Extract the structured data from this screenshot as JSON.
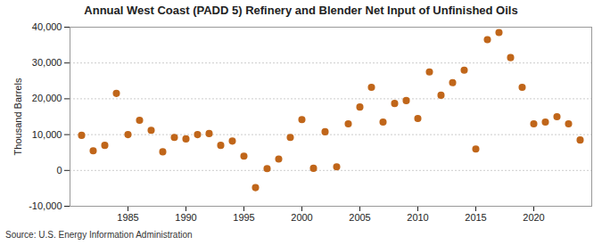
{
  "chart_data": {
    "type": "scatter",
    "title": "Annual West Coast (PADD 5) Refinery and Blender Net Input of Unfinished Oils",
    "y_label": "Thousand Barrels",
    "source": "Source: U.S. Energy Information Administration",
    "x": [
      1981,
      1982,
      1983,
      1984,
      1985,
      1986,
      1987,
      1988,
      1989,
      1990,
      1991,
      1992,
      1993,
      1994,
      1995,
      1996,
      1997,
      1998,
      1999,
      2000,
      2001,
      2002,
      2003,
      2004,
      2005,
      2006,
      2007,
      2008,
      2009,
      2010,
      2011,
      2012,
      2013,
      2014,
      2015,
      2016,
      2017,
      2018,
      2019,
      2020,
      2021,
      2022,
      2023,
      2024
    ],
    "values": [
      9800,
      5500,
      7000,
      21500,
      10000,
      14000,
      11200,
      5200,
      9200,
      8800,
      10000,
      10300,
      7000,
      8200,
      4000,
      -4800,
      500,
      3200,
      9200,
      14200,
      600,
      10800,
      1000,
      13000,
      17700,
      23200,
      13500,
      18700,
      19500,
      14500,
      27500,
      21000,
      24500,
      28000,
      6000,
      36500,
      38500,
      31500,
      23200,
      13000,
      13500,
      15000,
      13000,
      8500
    ],
    "color": "#c0661a",
    "marker": "circle",
    "xlim": [
      1980,
      2025
    ],
    "xticks": [
      1985,
      1990,
      1995,
      2000,
      2005,
      2010,
      2015,
      2020
    ],
    "ylim": [
      -10000,
      40000
    ],
    "yticks": [
      {
        "value": -10000,
        "label": "-10,000"
      },
      0,
      {
        "value": 10000,
        "label": "10,000"
      },
      {
        "value": 20000,
        "label": "20,000"
      },
      {
        "value": 30000,
        "label": "30,000"
      },
      {
        "value": 40000,
        "label": "40,000"
      }
    ],
    "grid": true
  }
}
